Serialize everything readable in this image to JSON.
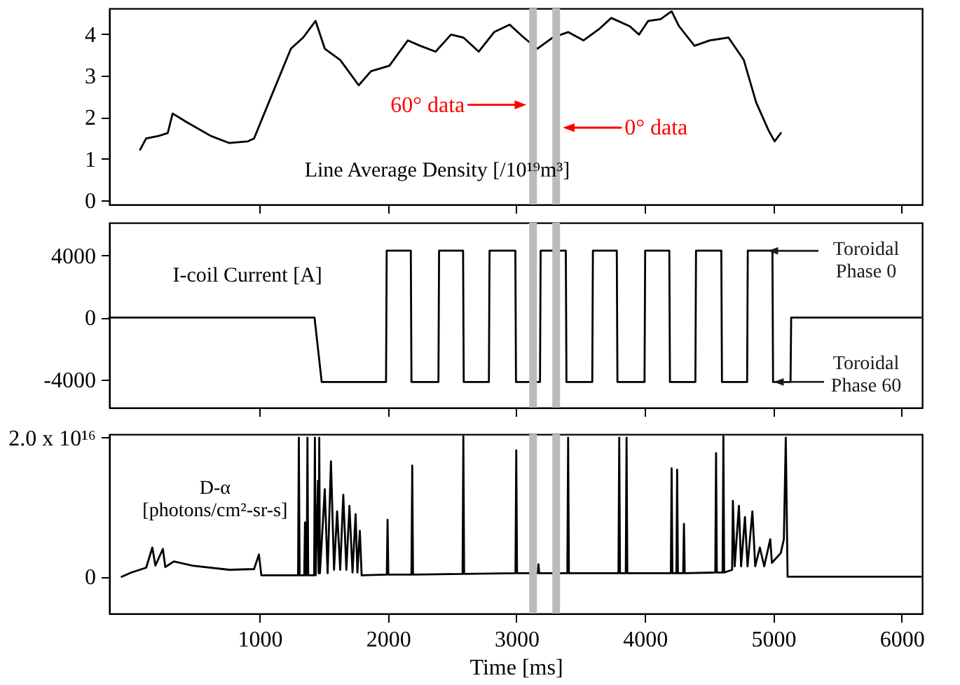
{
  "chart_data": [
    {
      "type": "line",
      "ylabel": "Line Average Density [/10¹⁹m³]",
      "xlim": [
        -170,
        6160
      ],
      "ylim": [
        -0.1,
        4.62
      ],
      "xticks": [
        1000,
        2000,
        3000,
        4000,
        5000,
        6000
      ],
      "yticks": [
        0,
        1,
        2,
        3,
        4
      ],
      "tick_labels": "y",
      "grid": false,
      "series": [
        {
          "color": "#000000",
          "x": [
            70,
            117,
            213,
            285,
            323,
            429,
            621,
            765,
            909,
            957,
            1100,
            1244,
            1340,
            1436,
            1508,
            1628,
            1772,
            1868,
            2011,
            2155,
            2251,
            2371,
            2491,
            2587,
            2707,
            2827,
            2947,
            3057,
            3163,
            3283,
            3403,
            3523,
            3643,
            3739,
            3883,
            3955,
            4027,
            4123,
            4209,
            4267,
            4387,
            4507,
            4651,
            4771,
            4867,
            4963,
            5011,
            5059
          ],
          "values": [
            1.22,
            1.49,
            1.55,
            1.62,
            2.09,
            1.89,
            1.55,
            1.38,
            1.42,
            1.49,
            2.57,
            3.65,
            3.92,
            4.32,
            3.65,
            3.38,
            2.77,
            3.11,
            3.24,
            3.85,
            3.72,
            3.58,
            3.99,
            3.92,
            3.58,
            4.05,
            4.23,
            3.92,
            3.65,
            3.92,
            4.05,
            3.85,
            4.12,
            4.39,
            4.19,
            3.99,
            4.32,
            4.36,
            4.55,
            4.19,
            3.72,
            3.85,
            3.92,
            3.38,
            2.36,
            1.69,
            1.42,
            1.62
          ]
        }
      ],
      "bands": [
        {
          "axis": "x",
          "from": 3100,
          "to": 3160,
          "color": "#bbbbbb"
        },
        {
          "axis": "x",
          "from": 3280,
          "to": 3340,
          "color": "#bbbbbb"
        }
      ],
      "annotations": [
        {
          "text": "60° data",
          "x": 3100,
          "y": 2.3
        },
        {
          "text": "0° data",
          "x": 3340,
          "y": 1.75
        }
      ]
    },
    {
      "type": "line",
      "ylabel": "I-coil Current [A]",
      "xlim": [
        -170,
        6160
      ],
      "ylim": [
        -5800,
        6100
      ],
      "xticks": [
        1000,
        2000,
        3000,
        4000,
        5000,
        6000
      ],
      "yticks": [
        -4000,
        0,
        4000
      ],
      "tick_labels": "y",
      "grid": false,
      "series": [
        {
          "color": "#000000",
          "x": [
            -170,
            1428,
            1484,
            1985,
            1990,
            2178,
            2183,
            2393,
            2398,
            2585,
            2590,
            2786,
            2791,
            2992,
            2997,
            3184,
            3189,
            3385,
            3390,
            3591,
            3596,
            3782,
            3787,
            3998,
            4003,
            4191,
            4196,
            4394,
            4399,
            4596,
            4601,
            4797,
            4802,
            4994,
            4999,
            5135,
            5140,
            6150
          ],
          "values": [
            0,
            0,
            -4150,
            -4150,
            4300,
            4300,
            -4150,
            -4150,
            4300,
            4300,
            -4150,
            -4150,
            4300,
            4300,
            -4150,
            -4150,
            4300,
            4300,
            -4150,
            -4150,
            4300,
            4300,
            -4150,
            -4150,
            4300,
            4300,
            -4150,
            -4150,
            4300,
            4300,
            -4150,
            -4150,
            4300,
            4300,
            -4150,
            -4150,
            0,
            0
          ]
        }
      ],
      "bands": [
        {
          "axis": "x",
          "from": 3100,
          "to": 3160,
          "color": "#bbbbbb"
        },
        {
          "axis": "x",
          "from": 3280,
          "to": 3340,
          "color": "#bbbbbb"
        }
      ],
      "annotations": [
        "Toroidal\nPhase 0",
        "Toroidal\nPhase 60"
      ]
    },
    {
      "type": "line",
      "ylabel": "D-α\n[photons/cm²-sr-s]",
      "xlabel": "Time [ms]",
      "xlim": [
        -170,
        6160
      ],
      "ylim": [
        -5300000000000000.0,
        2.05e+16
      ],
      "xticks": [
        1000,
        2000,
        3000,
        4000,
        5000,
        6000
      ],
      "yticks": [
        0,
        {
          "value": 2e+16,
          "label": "2.0 x 10¹⁶"
        }
      ],
      "grid": false,
      "series": [
        {
          "color": "#000000",
          "x": [
            -74,
            0,
            117,
            165,
            189,
            247,
            266,
            333,
            477,
            765,
            957,
            995,
            1014,
            1300,
            1306,
            1312,
            1348,
            1354,
            1360,
            1367,
            1373,
            1379,
            1425,
            1431,
            1437,
            1455,
            1460,
            1465,
            1470,
            1508,
            1530,
            1556,
            1580,
            1604,
            1628,
            1652,
            1676,
            1700,
            1724,
            1748,
            1762,
            1781,
            1795,
            1991,
            1997,
            2003,
            2183,
            2189,
            2195,
            2581,
            2587,
            2593,
            2993,
            2999,
            3005,
            3166,
            3172,
            3178,
            3397,
            3403,
            3409,
            3795,
            3801,
            3807,
            3852,
            3858,
            3864,
            4203,
            4209,
            4215,
            4246,
            4252,
            4258,
            4299,
            4305,
            4311,
            4549,
            4555,
            4561,
            4606,
            4612,
            4618,
            4680,
            4686,
            4700,
            4733,
            4750,
            4780,
            4800,
            4838,
            4860,
            4896,
            4930,
            4977,
            4990,
            5059,
            5083,
            5098,
            5112,
            6150
          ],
          "values": [
            0,
            600000000000000.0,
            1300000000000000.0,
            4200000000000000.0,
            1600000000000000.0,
            4000000000000000.0,
            1400000000000000.0,
            2200000000000000.0,
            1600000000000000.0,
            1000000000000000.0,
            1100000000000000.0,
            3200000000000000.0,
            200000000000000.0,
            200000000000000.0,
            2e+16,
            200000000000000.0,
            200000000000000.0,
            7800000000000000.0,
            200000000000000.0,
            200000000000000.0,
            2e+16,
            200000000000000.0,
            200000000000000.0,
            2e+16,
            200000000000000.0,
            1.38e+16,
            500000000000000.0,
            2e+16,
            500000000000000.0,
            1.26e+16,
            500000000000000.0,
            1.66e+16,
            1000000000000000.0,
            9400000000000000.0,
            1000000000000000.0,
            1.18e+16,
            1000000000000000.0,
            1.02e+16,
            600000000000000.0,
            9000000000000000.0,
            600000000000000.0,
            6600000000000000.0,
            200000000000000.0,
            300000000000000.0,
            8200000000000000.0,
            300000000000000.0,
            300000000000000.0,
            1.6e+16,
            300000000000000.0,
            400000000000000.0,
            2.02e+16,
            400000000000000.0,
            500000000000000.0,
            1.82e+16,
            500000000000000.0,
            500000000000000.0,
            1800000000000000.0,
            500000000000000.0,
            500000000000000.0,
            2e+16,
            500000000000000.0,
            500000000000000.0,
            2e+16,
            500000000000000.0,
            500000000000000.0,
            2e+16,
            500000000000000.0,
            500000000000000.0,
            1.56e+16,
            500000000000000.0,
            500000000000000.0,
            1.54e+16,
            500000000000000.0,
            500000000000000.0,
            7600000000000000.0,
            500000000000000.0,
            600000000000000.0,
            1.78e+16,
            600000000000000.0,
            600000000000000.0,
            2.02e+16,
            600000000000000.0,
            1000000000000000.0,
            1.09e+16,
            1500000000000000.0,
            1.02e+16,
            1500000000000000.0,
            8600000000000000.0,
            1500000000000000.0,
            9400000000000000.0,
            1500000000000000.0,
            4200000000000000.0,
            1500000000000000.0,
            5400000000000000.0,
            2000000000000000.0,
            3400000000000000.0,
            5400000000000000.0,
            2e+16,
            0,
            0
          ]
        }
      ],
      "bands": [
        {
          "axis": "x",
          "from": 3100,
          "to": 3160,
          "color": "#bbbbbb"
        },
        {
          "axis": "x",
          "from": 3280,
          "to": 3340,
          "color": "#bbbbbb"
        }
      ]
    }
  ]
}
